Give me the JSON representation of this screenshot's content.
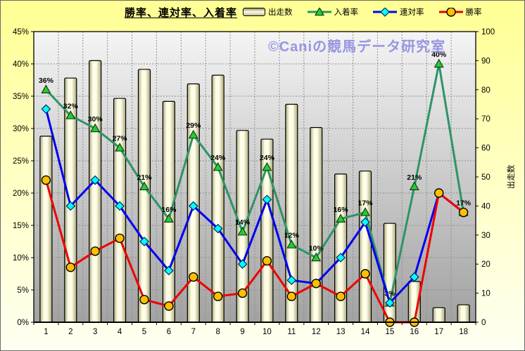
{
  "chart_data": {
    "type": "combo",
    "title": "勝率、連対率、入着率",
    "watermark": "©Caniの競馬データ研究室",
    "categories": [
      "1",
      "2",
      "3",
      "4",
      "5",
      "6",
      "7",
      "8",
      "9",
      "10",
      "11",
      "12",
      "13",
      "14",
      "15",
      "16",
      "17",
      "18"
    ],
    "left_axis": {
      "min": 0,
      "max": 45,
      "step": 5,
      "suffix": "%"
    },
    "right_axis": {
      "min": 0,
      "max": 100,
      "step": 10,
      "title": "出走数"
    },
    "grid_color": "#8f8f8f",
    "plot_bg": {
      "top": "#f4f4f4",
      "bottom": "#a2a2a2"
    },
    "bar_style": {
      "edge": "#a8a87e",
      "center": "#fffde6"
    },
    "series": [
      {
        "key": "starts",
        "name": "出走数",
        "type": "bar",
        "axis": "right",
        "values": [
          64,
          84,
          90,
          77,
          87,
          76,
          82,
          85,
          66,
          63,
          75,
          67,
          51,
          52,
          34,
          14,
          5,
          6
        ]
      },
      {
        "key": "place",
        "name": "入着率",
        "type": "line",
        "axis": "left",
        "color": "#2e9466",
        "marker": "triangle",
        "marker_fill": "#1ed030",
        "marker_stroke": "#1c3a1c",
        "data_labels": true,
        "values": [
          36,
          32,
          30,
          27,
          21,
          16,
          29,
          24,
          14,
          24,
          12,
          10,
          16,
          17,
          3,
          21,
          40,
          17
        ]
      },
      {
        "key": "quinella",
        "name": "連対率",
        "type": "line",
        "axis": "left",
        "color": "#0000ee",
        "marker": "diamond",
        "marker_fill": "#00ffff",
        "marker_stroke": "#002a66",
        "data_labels": false,
        "values": [
          33,
          18,
          22,
          18,
          12.5,
          8,
          18,
          14.5,
          9,
          19,
          6.5,
          6,
          10,
          15.5,
          3,
          7,
          20,
          17
        ]
      },
      {
        "key": "win",
        "name": "勝率",
        "type": "line",
        "axis": "left",
        "color": "#ee0000",
        "marker": "circle",
        "marker_fill": "#ffc000",
        "marker_stroke": "#000000",
        "data_labels": false,
        "values": [
          22,
          8.5,
          11,
          13,
          3.5,
          2.5,
          7,
          4,
          4.5,
          9.5,
          4,
          6,
          4,
          7.5,
          0,
          0,
          20,
          17
        ]
      }
    ]
  }
}
